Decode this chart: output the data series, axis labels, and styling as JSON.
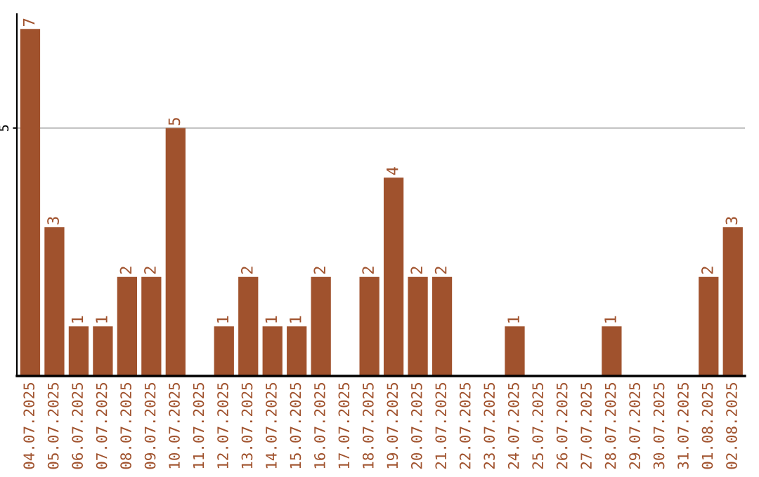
{
  "chart_data": {
    "type": "bar",
    "categories": [
      "04.07.2025",
      "05.07.2025",
      "06.07.2025",
      "07.07.2025",
      "08.07.2025",
      "09.07.2025",
      "10.07.2025",
      "11.07.2025",
      "12.07.2025",
      "13.07.2025",
      "14.07.2025",
      "15.07.2025",
      "16.07.2025",
      "17.07.2025",
      "18.07.2025",
      "19.07.2025",
      "20.07.2025",
      "21.07.2025",
      "22.07.2025",
      "23.07.2025",
      "24.07.2025",
      "25.07.2025",
      "26.07.2025",
      "27.07.2025",
      "28.07.2025",
      "29.07.2025",
      "30.07.2025",
      "31.07.2025",
      "01.08.2025",
      "02.08.2025"
    ],
    "values": [
      7,
      3,
      1,
      1,
      2,
      2,
      5,
      0,
      1,
      2,
      1,
      1,
      2,
      0,
      2,
      4,
      2,
      2,
      0,
      0,
      1,
      0,
      0,
      0,
      1,
      0,
      0,
      0,
      2,
      3
    ],
    "value_labels": [
      "7",
      "3",
      "1",
      "1",
      "2",
      "2",
      "5",
      null,
      "1",
      "2",
      "1",
      "1",
      "2",
      null,
      "2",
      "4",
      "2",
      "2",
      null,
      null,
      "1",
      null,
      null,
      null,
      "1",
      null,
      null,
      null,
      "2",
      "3"
    ],
    "color": "#a0522d",
    "ylim": [
      0,
      7.3
    ],
    "yticks": [
      5
    ],
    "grid": "y"
  }
}
